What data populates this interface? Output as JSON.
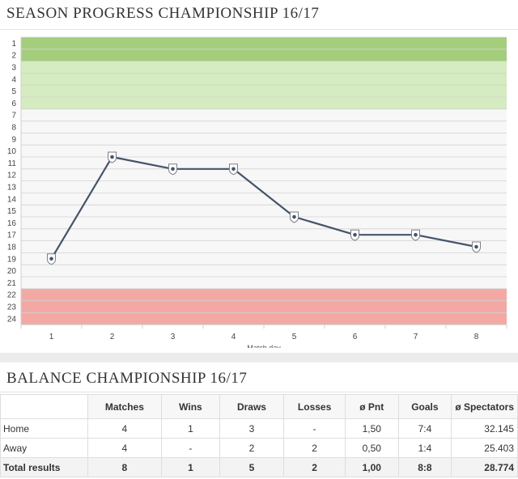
{
  "progress_section": {
    "title": "SEASON PROGRESS CHAMPIONSHIP 16/17"
  },
  "chart_data": {
    "type": "line",
    "title": "SEASON PROGRESS CHAMPIONSHIP 16/17",
    "xlabel": "Match day",
    "ylabel": "",
    "x": [
      1,
      2,
      3,
      4,
      5,
      6,
      7,
      8
    ],
    "x_tick_labels": [
      "1",
      "2",
      "3",
      "4",
      "5",
      "6",
      "7",
      "8"
    ],
    "y_tick_labels": [
      "1",
      "2",
      "3",
      "4",
      "5",
      "6",
      "7",
      "8",
      "9",
      "10",
      "11",
      "12",
      "13",
      "14",
      "15",
      "16",
      "17",
      "18",
      "19",
      "20",
      "21",
      "22",
      "23",
      "24"
    ],
    "ylim": [
      1,
      24
    ],
    "y_inverted": true,
    "grid": true,
    "series": [
      {
        "values": [
          19,
          10.5,
          11.5,
          11.5,
          15.5,
          17,
          17,
          18
        ],
        "color": "#44546a",
        "marker_icons": [
          "club-crest-icon",
          "club-crest-icon",
          "club-crest-icon",
          "club-crest-icon",
          "club-crest-icon",
          "club-crest-icon",
          "club-crest-icon",
          "club-crest-icon"
        ]
      }
    ],
    "zones": [
      {
        "from": 1,
        "to": 2,
        "color": "#a4cd7c"
      },
      {
        "from": 3,
        "to": 6,
        "color": "#d5ebc0"
      },
      {
        "from": 22,
        "to": 24,
        "color": "#f4a8a4"
      }
    ]
  },
  "balance_section": {
    "title": "BALANCE CHAMPIONSHIP 16/17",
    "columns": [
      "Matches",
      "Wins",
      "Draws",
      "Losses",
      "ø Pnt",
      "Goals",
      "ø Spectators"
    ],
    "rows": [
      {
        "label": "Home",
        "values": [
          "4",
          "1",
          "3",
          "-",
          "1,50",
          "7:4",
          "32.145"
        ]
      },
      {
        "label": "Away",
        "values": [
          "4",
          "-",
          "2",
          "2",
          "0,50",
          "1:4",
          "25.403"
        ]
      },
      {
        "label": "Total results",
        "values": [
          "8",
          "1",
          "5",
          "2",
          "1,00",
          "8:8",
          "28.774"
        ]
      }
    ]
  }
}
